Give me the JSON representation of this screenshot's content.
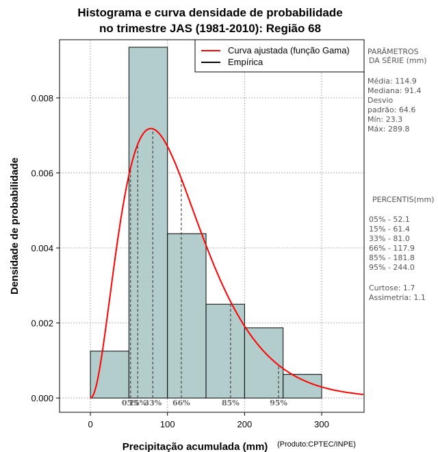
{
  "chart_data": {
    "type": "histogram",
    "title_line1": "Histograma e curva densidade de probabilidade",
    "title_line2": "no trimestre JAS (1981-2010): Região 68",
    "xlabel": "Precipitação acumulada (mm)",
    "ylabel": "Densidade de probabilidade",
    "credit": "(Produto:CPTEC/INPE)",
    "xlim": [
      -40,
      355
    ],
    "ylim": [
      -0.00038,
      0.00955
    ],
    "x_ticks": [
      0,
      100,
      200,
      300
    ],
    "y_ticks": [
      0.0,
      0.002,
      0.004,
      0.006,
      0.008
    ],
    "y_tick_labels": [
      "0.000",
      "0.002",
      "0.004",
      "0.006",
      "0.008"
    ],
    "grid": true,
    "bins": [
      {
        "from": 0,
        "to": 50,
        "density": 0.00125
      },
      {
        "from": 50,
        "to": 100,
        "density": 0.00935
      },
      {
        "from": 100,
        "to": 150,
        "density": 0.00438
      },
      {
        "from": 150,
        "to": 200,
        "density": 0.0025
      },
      {
        "from": 200,
        "to": 250,
        "density": 0.00187
      },
      {
        "from": 250,
        "to": 300,
        "density": 0.00063
      }
    ],
    "bar_color": "#b3cccc",
    "gamma_fit": {
      "shape": 3.1568,
      "rate": 0.027479,
      "color": "#ff0000"
    },
    "legend": {
      "position": "top-right",
      "entries": [
        {
          "label": "Curva ajustada (função Gama)",
          "color": "#ff0000"
        },
        {
          "label": "Empírica",
          "color": "#000000"
        }
      ]
    },
    "percentile_markers": [
      {
        "value": 52.1,
        "label": "05%"
      },
      {
        "value": 61.4,
        "label": "15%"
      },
      {
        "value": 81.0,
        "label": "33%"
      },
      {
        "value": 117.9,
        "label": "66%"
      },
      {
        "value": 181.8,
        "label": "85%"
      },
      {
        "value": 244.0,
        "label": "95%"
      }
    ]
  },
  "sidebar": {
    "params_title_1": "PARÂMETROS",
    "params_title_2": "DA SÉRIE (mm)",
    "media": "Média:  114.9",
    "mediana": "Mediana:  91.4",
    "desvio_1": "Desvio",
    "desvio_2": "padrão:  64.6",
    "min": "Mín:  23.3",
    "max": "Máx:  289.8",
    "percentis_title": "PERCENTIS(mm)",
    "p05": "05% -  52.1",
    "p15": "15% -  61.4",
    "p33": "33% -  81.0",
    "p66": "66% -  117.9",
    "p85": "85% -  181.8",
    "p95": "95% -  244.0",
    "curtose": "Curtose:  1.7",
    "assimetria": "Assimetria:  1.1"
  }
}
